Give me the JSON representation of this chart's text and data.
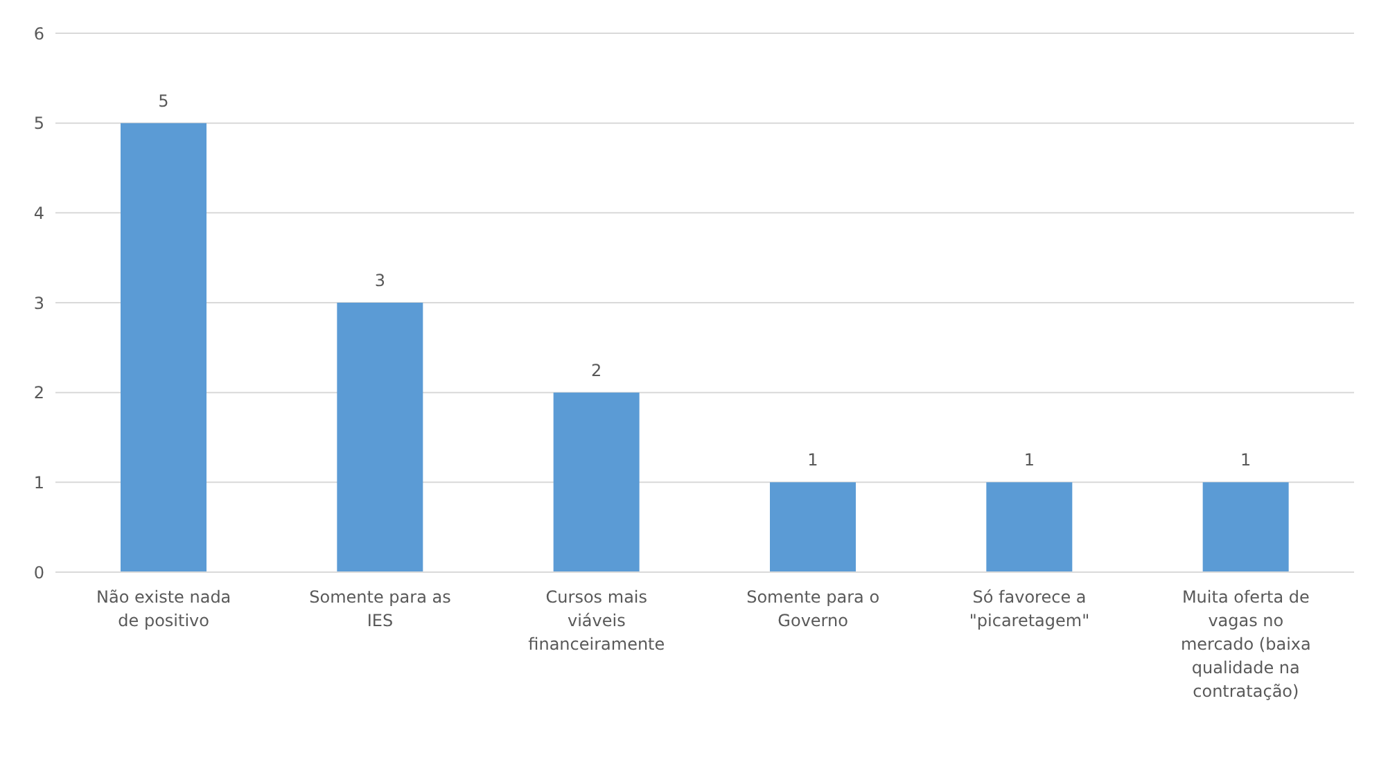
{
  "chart_data": {
    "type": "bar",
    "categories": [
      "Não existe nada de positivo",
      "Somente para as IES",
      "Cursos mais viáveis financeiramente",
      "Somente para o Governo",
      "Só favorece a \"picaretagem\"",
      "Muita oferta de vagas no mercado (baixa qualidade na contratação)"
    ],
    "values": [
      5,
      3,
      2,
      1,
      1,
      1
    ],
    "color": "#5b9bd5",
    "ylim": [
      0,
      6
    ],
    "yticks": [
      0,
      1,
      2,
      3,
      4,
      5,
      6
    ],
    "grid": "y",
    "data_labels": true,
    "legend": false
  }
}
